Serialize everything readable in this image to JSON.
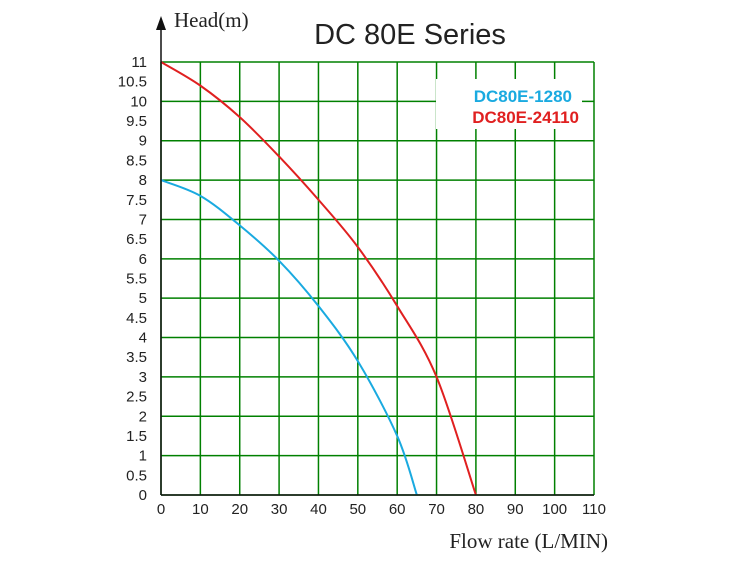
{
  "chart_data": {
    "type": "line",
    "title": "DC 80E Series",
    "xlabel": "Flow rate (L/MIN)",
    "ylabel": "Head(m)",
    "xlim": [
      0,
      110
    ],
    "ylim": [
      0,
      11
    ],
    "grid": true,
    "legend_position": "top-right",
    "x_ticks": [
      "0",
      "10",
      "20",
      "30",
      "40",
      "50",
      "60",
      "70",
      "80",
      "90",
      "100",
      "110"
    ],
    "y_ticks": [
      "0",
      "0.5",
      "1",
      "1.5",
      "2",
      "2.5",
      "3",
      "3.5",
      "4",
      "4.5",
      "5",
      "5.5",
      "6",
      "6.5",
      "7",
      "7.5",
      "8",
      "8.5",
      "9",
      "9.5",
      "10",
      "10.5",
      "11"
    ],
    "grid_color": "#008000",
    "series": [
      {
        "name": "DC80E-1280",
        "color": "#1aaae0",
        "x": [
          0,
          10,
          20,
          30,
          40,
          50,
          60,
          65
        ],
        "y": [
          8.0,
          7.6,
          6.85,
          5.95,
          4.8,
          3.4,
          1.5,
          0
        ]
      },
      {
        "name": "DC80E-24110",
        "color": "#e02020",
        "x": [
          0,
          10,
          20,
          30,
          40,
          50,
          60,
          70,
          80
        ],
        "y": [
          11.0,
          10.4,
          9.6,
          8.6,
          7.5,
          6.3,
          4.8,
          3.0,
          0
        ]
      }
    ]
  }
}
